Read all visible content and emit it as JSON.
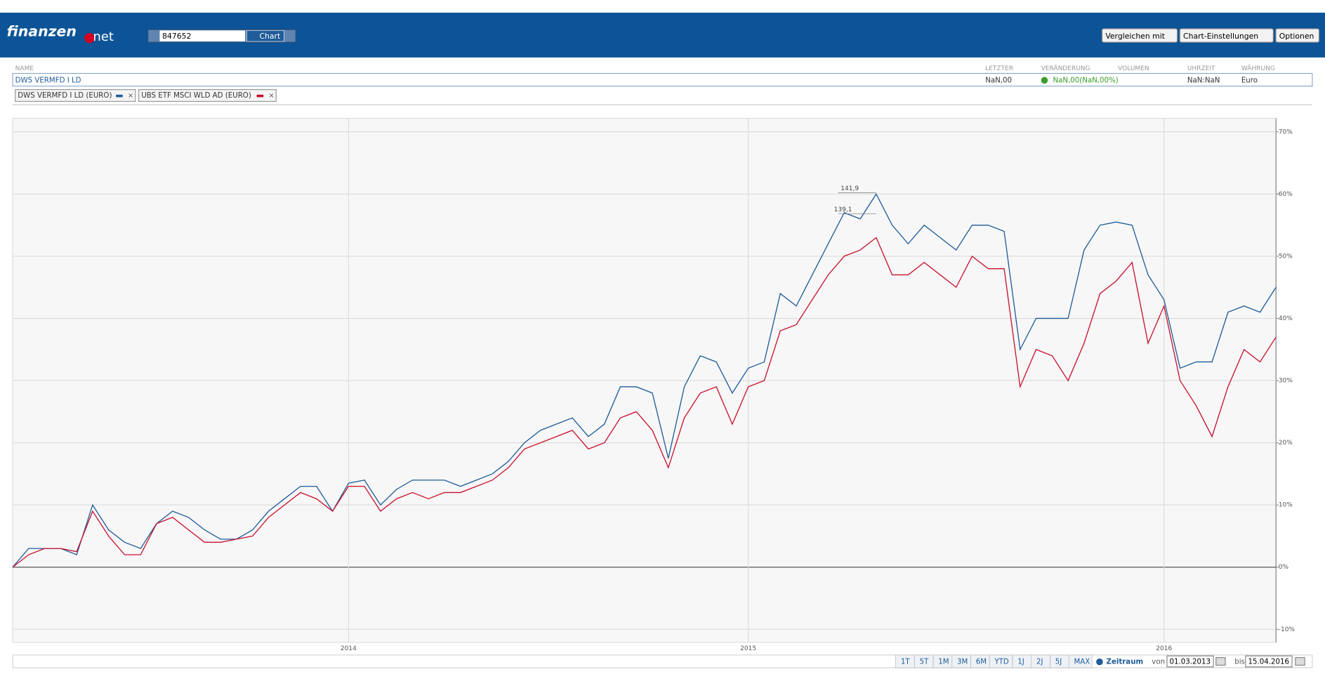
{
  "header": {
    "logo": "finanzen",
    "logo_suffix": "net",
    "search_value": "847652",
    "search_button": "Chart",
    "buttons": [
      "Vergleichen mit",
      "Chart-Einstellungen",
      "Optionen"
    ]
  },
  "table": {
    "columns": [
      "NAME",
      "LETZTER",
      "VERÄNDERUNG",
      "VOLUMEN",
      "UHRZEIT",
      "WÄHRUNG"
    ],
    "row": {
      "name": "DWS VERMFD I LD",
      "last": "NaN,00",
      "change": "NaN,00(NaN,00%)",
      "time": "NaN:NaN",
      "currency": "Euro"
    }
  },
  "tags": [
    "DWS VERMFD I LD (EURO)",
    "UBS ETF MSCI WLD AD (EURO)"
  ],
  "chart_data": {
    "type": "line",
    "categories": [
      null,
      null,
      null,
      null,
      null,
      null,
      null,
      null,
      null,
      null,
      null,
      null,
      null,
      null,
      null,
      null,
      null,
      null,
      null,
      null,
      null,
      "2014",
      null,
      null,
      null,
      null,
      null,
      null,
      null,
      null,
      null,
      null,
      null,
      null,
      null,
      null,
      null,
      null,
      null,
      null,
      null,
      null,
      null,
      null,
      null,
      null,
      "2015",
      null,
      null,
      null,
      null,
      null,
      null,
      null,
      null,
      null,
      null,
      null,
      null,
      null,
      null,
      null,
      null,
      null,
      null,
      null,
      null,
      null,
      null,
      null,
      null,
      null,
      "2016",
      null,
      null,
      null,
      null,
      null,
      null,
      null
    ],
    "series": [
      {
        "name": "DWS VERMFD I LD (EURO)",
        "color": "#1f5c99",
        "values": [
          0,
          3,
          3,
          3,
          2,
          10,
          6,
          4,
          3,
          7,
          9,
          8,
          6,
          4.5,
          4.5,
          6,
          9,
          11,
          13,
          13,
          9,
          13.5,
          14,
          10,
          12.5,
          14,
          14,
          14,
          13,
          14,
          15,
          17,
          20,
          22,
          23,
          24,
          21,
          23,
          29,
          29,
          28,
          17.5,
          29,
          34,
          33,
          28,
          32,
          33,
          44,
          42,
          47,
          52,
          57,
          56,
          60,
          55,
          52,
          55,
          53,
          51,
          55,
          55,
          54,
          35,
          40,
          40,
          40,
          51,
          55,
          55.5,
          55,
          47,
          43,
          32,
          33,
          33,
          41,
          42,
          41,
          45
        ]
      },
      {
        "name": "UBS ETF MSCI WLD AD (EURO)",
        "color": "#c8102e",
        "values": [
          0,
          2,
          3,
          3,
          2.5,
          9,
          5,
          2,
          2,
          7,
          8,
          6,
          4,
          4,
          4.5,
          5,
          8,
          10,
          12,
          11,
          9,
          13,
          13,
          9,
          11,
          12,
          11,
          12,
          12,
          13,
          14,
          16,
          19,
          20,
          21,
          22,
          19,
          20,
          24,
          25,
          22,
          16,
          24,
          28,
          29,
          23,
          29,
          30,
          38,
          39,
          43,
          47,
          50,
          51,
          53,
          47,
          47,
          49,
          47,
          45,
          50,
          48,
          48,
          29,
          35,
          34,
          30,
          36,
          44,
          46,
          49,
          36,
          42,
          30,
          26,
          21,
          29,
          35,
          33,
          37
        ]
      }
    ],
    "annotations": [
      "141,9",
      "139,1"
    ],
    "ylim": [
      -11,
      72
    ],
    "yticks": [
      {
        "value": -10,
        "label": "-10%"
      },
      {
        "value": 0,
        "label": "0%"
      },
      {
        "value": 10,
        "label": "10%"
      },
      {
        "value": 20,
        "label": "20%"
      },
      {
        "value": 30,
        "label": "30%"
      },
      {
        "value": 40,
        "label": "40%"
      },
      {
        "value": 50,
        "label": "50%"
      },
      {
        "value": 60,
        "label": "60%"
      },
      {
        "value": 70,
        "label": "70%"
      }
    ],
    "grid": true
  },
  "footer": {
    "ranges": [
      "1T",
      "5T",
      "1M",
      "3M",
      "6M",
      "YTD",
      "1J",
      "2J",
      "5J",
      "MAX"
    ],
    "period_label": "Zeitraum",
    "from_label": "von",
    "from": "01.03.2013",
    "to_label": "bis",
    "to": "15.04.2016"
  }
}
